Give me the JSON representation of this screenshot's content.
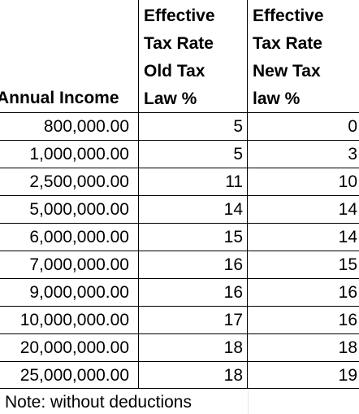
{
  "table": {
    "headers": {
      "income": "Annual Income",
      "old_lines": [
        "Effective",
        "Tax Rate",
        "Old Tax",
        "Law %"
      ],
      "new_lines": [
        "Effective",
        "Tax Rate",
        "New Tax",
        "law %"
      ]
    },
    "rows": [
      {
        "income": "800,000.00",
        "old": "5",
        "new": "0"
      },
      {
        "income": "1,000,000.00",
        "old": "5",
        "new": "3"
      },
      {
        "income": "2,500,000.00",
        "old": "11",
        "new": "10"
      },
      {
        "income": "5,000,000.00",
        "old": "14",
        "new": "14"
      },
      {
        "income": "6,000,000.00",
        "old": "15",
        "new": "14"
      },
      {
        "income": "7,000,000.00",
        "old": "16",
        "new": "15"
      },
      {
        "income": "9,000,000.00",
        "old": "16",
        "new": "16"
      },
      {
        "income": "10,000,000.00",
        "old": "17",
        "new": "16"
      },
      {
        "income": "20,000,000.00",
        "old": "18",
        "new": "18"
      },
      {
        "income": "25,000,000.00",
        "old": "18",
        "new": "19"
      }
    ],
    "note": "Note: without deductions"
  }
}
